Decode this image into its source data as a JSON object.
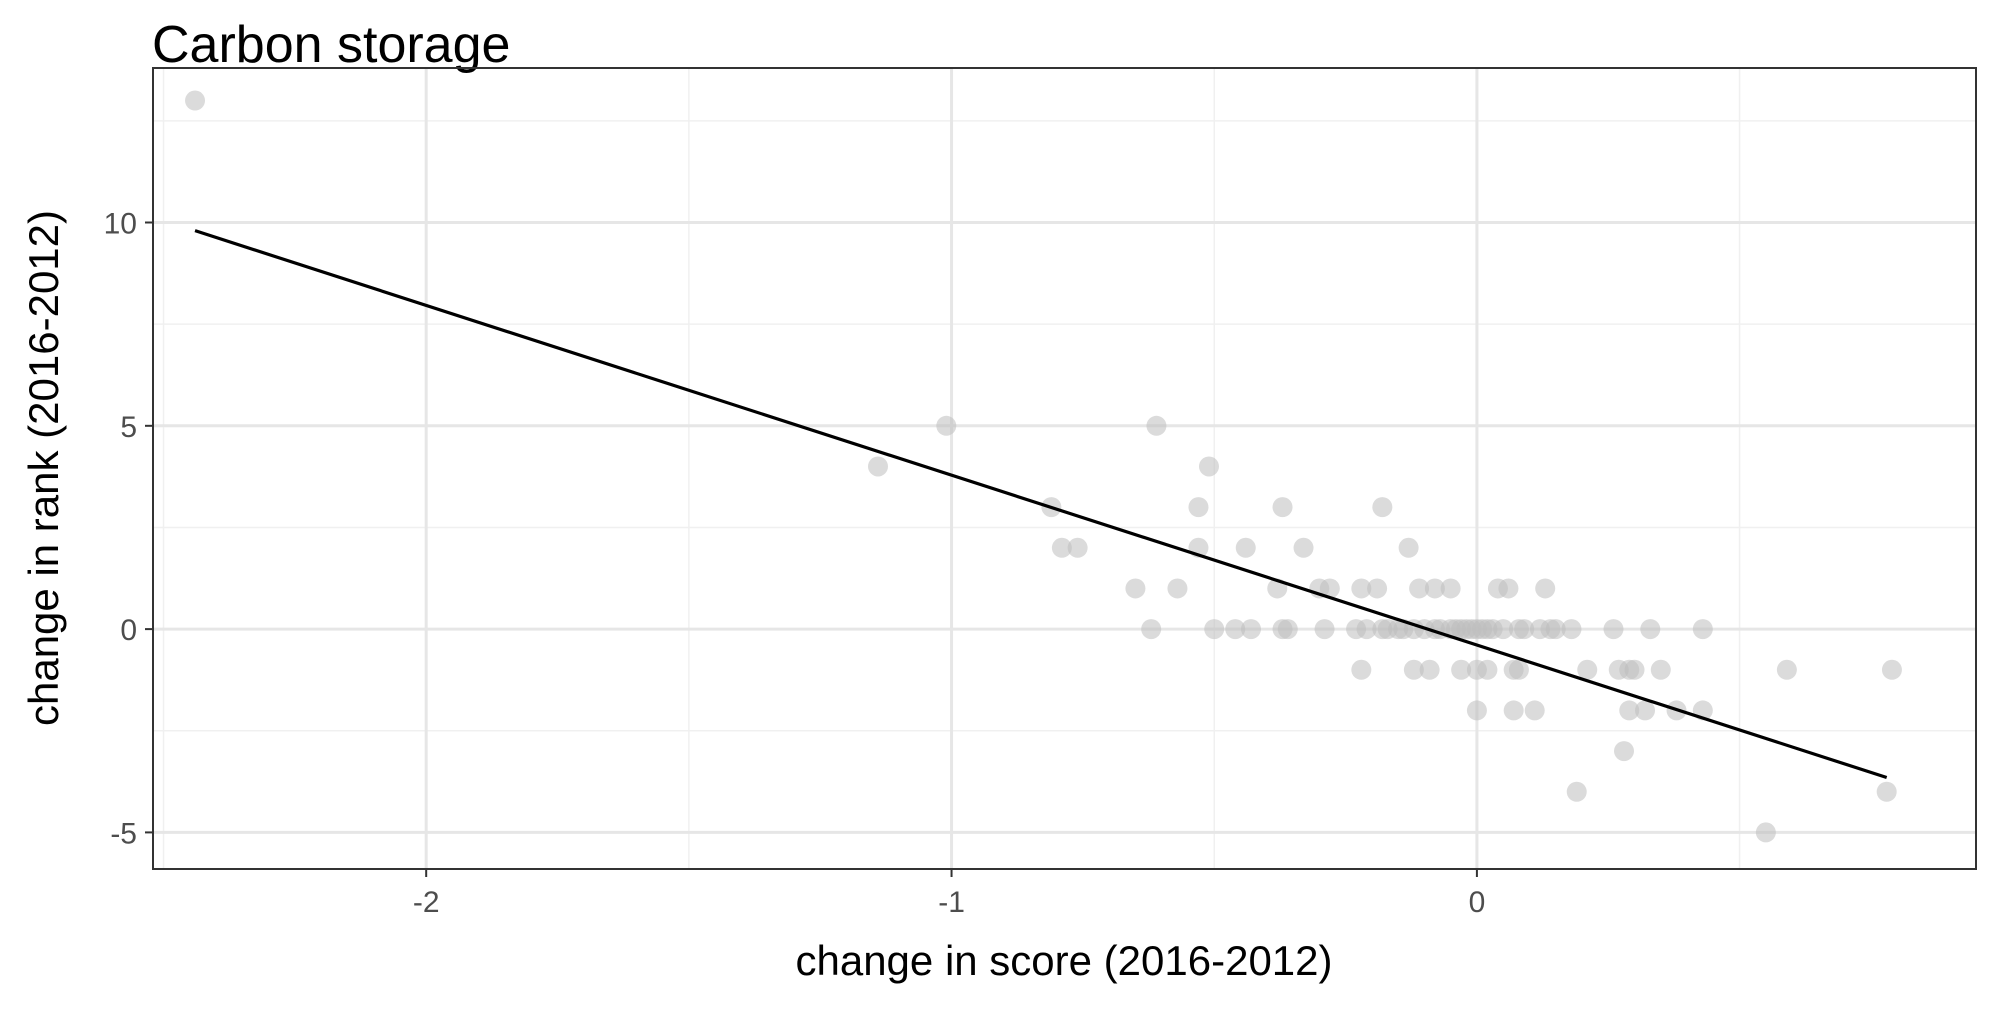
{
  "chart_data": {
    "type": "scatter",
    "title": "Carbon storage",
    "xlabel": "change in score (2016-2012)",
    "ylabel": "change in rank (2016-2012)",
    "xlim": [
      -2.52,
      0.95
    ],
    "ylim": [
      -5.9,
      13.8
    ],
    "x_ticks": [
      {
        "value": -2,
        "label": "-2"
      },
      {
        "value": -1,
        "label": "-1"
      },
      {
        "value": 0,
        "label": "0"
      }
    ],
    "y_ticks": [
      {
        "value": -5,
        "label": "-5"
      },
      {
        "value": 0,
        "label": "0"
      },
      {
        "value": 5,
        "label": "5"
      },
      {
        "value": 10,
        "label": "10"
      }
    ],
    "grid": true,
    "point_color": "#bdbdbd",
    "line_color": "#000000",
    "points": [
      {
        "x": -2.44,
        "y": 13
      },
      {
        "x": -1.14,
        "y": 4
      },
      {
        "x": -1.01,
        "y": 5
      },
      {
        "x": -0.81,
        "y": 3
      },
      {
        "x": -0.79,
        "y": 2
      },
      {
        "x": -0.76,
        "y": 2
      },
      {
        "x": -0.65,
        "y": 1
      },
      {
        "x": -0.62,
        "y": 0
      },
      {
        "x": -0.61,
        "y": 5
      },
      {
        "x": -0.57,
        "y": 1
      },
      {
        "x": -0.53,
        "y": 3
      },
      {
        "x": -0.53,
        "y": 2
      },
      {
        "x": -0.51,
        "y": 4
      },
      {
        "x": -0.5,
        "y": 0
      },
      {
        "x": -0.46,
        "y": 0
      },
      {
        "x": -0.44,
        "y": 2
      },
      {
        "x": -0.43,
        "y": 0
      },
      {
        "x": -0.38,
        "y": 1
      },
      {
        "x": -0.37,
        "y": 3
      },
      {
        "x": -0.37,
        "y": 0
      },
      {
        "x": -0.36,
        "y": 0
      },
      {
        "x": -0.33,
        "y": 2
      },
      {
        "x": -0.3,
        "y": 1
      },
      {
        "x": -0.29,
        "y": 0
      },
      {
        "x": -0.28,
        "y": 1
      },
      {
        "x": -0.23,
        "y": 0
      },
      {
        "x": -0.22,
        "y": 1
      },
      {
        "x": -0.22,
        "y": -1
      },
      {
        "x": -0.21,
        "y": 0
      },
      {
        "x": -0.19,
        "y": 1
      },
      {
        "x": -0.18,
        "y": 0
      },
      {
        "x": -0.18,
        "y": 3
      },
      {
        "x": -0.17,
        "y": 0
      },
      {
        "x": -0.15,
        "y": 0
      },
      {
        "x": -0.14,
        "y": 0
      },
      {
        "x": -0.13,
        "y": 2
      },
      {
        "x": -0.12,
        "y": 0
      },
      {
        "x": -0.12,
        "y": -1
      },
      {
        "x": -0.11,
        "y": 1
      },
      {
        "x": -0.1,
        "y": 0
      },
      {
        "x": -0.09,
        "y": -1
      },
      {
        "x": -0.08,
        "y": 0
      },
      {
        "x": -0.08,
        "y": 1
      },
      {
        "x": -0.07,
        "y": 0
      },
      {
        "x": -0.05,
        "y": 0
      },
      {
        "x": -0.05,
        "y": 1
      },
      {
        "x": -0.04,
        "y": 0
      },
      {
        "x": -0.03,
        "y": 0
      },
      {
        "x": -0.03,
        "y": -1
      },
      {
        "x": -0.02,
        "y": 0
      },
      {
        "x": -0.01,
        "y": 0
      },
      {
        "x": 0.0,
        "y": 0
      },
      {
        "x": 0.0,
        "y": -1
      },
      {
        "x": 0.0,
        "y": -2
      },
      {
        "x": 0.01,
        "y": 0
      },
      {
        "x": 0.02,
        "y": 0
      },
      {
        "x": 0.02,
        "y": -1
      },
      {
        "x": 0.03,
        "y": 0
      },
      {
        "x": 0.04,
        "y": 1
      },
      {
        "x": 0.05,
        "y": 0
      },
      {
        "x": 0.06,
        "y": 1
      },
      {
        "x": 0.07,
        "y": -1
      },
      {
        "x": 0.07,
        "y": -2
      },
      {
        "x": 0.08,
        "y": 0
      },
      {
        "x": 0.08,
        "y": -1
      },
      {
        "x": 0.09,
        "y": 0
      },
      {
        "x": 0.11,
        "y": -2
      },
      {
        "x": 0.12,
        "y": 0
      },
      {
        "x": 0.13,
        "y": 1
      },
      {
        "x": 0.14,
        "y": 0
      },
      {
        "x": 0.15,
        "y": 0
      },
      {
        "x": 0.18,
        "y": 0
      },
      {
        "x": 0.19,
        "y": -4
      },
      {
        "x": 0.21,
        "y": -1
      },
      {
        "x": 0.26,
        "y": 0
      },
      {
        "x": 0.27,
        "y": -1
      },
      {
        "x": 0.28,
        "y": -3
      },
      {
        "x": 0.29,
        "y": -2
      },
      {
        "x": 0.29,
        "y": -1
      },
      {
        "x": 0.3,
        "y": -1
      },
      {
        "x": 0.32,
        "y": -2
      },
      {
        "x": 0.33,
        "y": 0
      },
      {
        "x": 0.35,
        "y": -1
      },
      {
        "x": 0.38,
        "y": -2
      },
      {
        "x": 0.43,
        "y": -2
      },
      {
        "x": 0.43,
        "y": 0
      },
      {
        "x": 0.55,
        "y": -5
      },
      {
        "x": 0.59,
        "y": -1
      },
      {
        "x": 0.78,
        "y": -4
      },
      {
        "x": 0.79,
        "y": -1
      }
    ],
    "fit_line": {
      "x": [
        -2.44,
        0.78
      ],
      "y": [
        9.8,
        -3.65
      ]
    }
  }
}
